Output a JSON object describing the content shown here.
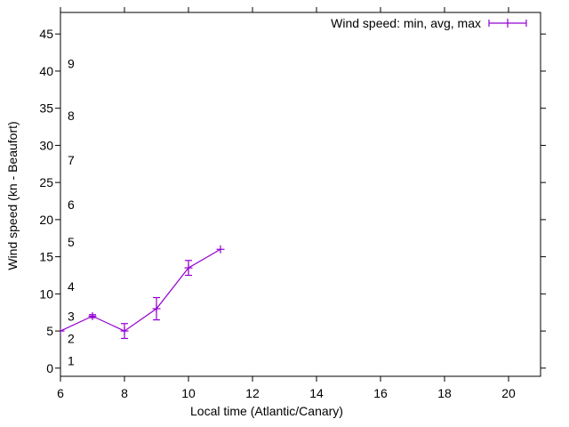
{
  "window": {
    "background_color": "#ffffff"
  },
  "chart_data": {
    "type": "line",
    "subtype": "yerrorlines",
    "legend_label": "Wind speed: min, avg, max",
    "legend_position": "top-right-inside",
    "xlabel": "Local time (Atlantic/Canary)",
    "ylabel": "Wind speed (kn - Beaufort)",
    "x_range": [
      6,
      21
    ],
    "y_range": [
      -1.1,
      47.9
    ],
    "x_ticks": [
      6,
      8,
      10,
      12,
      14,
      16,
      18,
      20
    ],
    "y_ticks": [
      0,
      5,
      10,
      15,
      20,
      25,
      30,
      35,
      40,
      45
    ],
    "grid": false,
    "tick_direction": "out-mirrored",
    "series": [
      {
        "name": "Wind speed: min, avg, max",
        "color": "#9400d3",
        "marker": "plus",
        "points": [
          {
            "x": 6,
            "min": 5,
            "avg": 5,
            "max": 5
          },
          {
            "x": 7,
            "min": 6.8,
            "avg": 7,
            "max": 7.2
          },
          {
            "x": 8,
            "min": 4,
            "avg": 5,
            "max": 6
          },
          {
            "x": 9,
            "min": 6.5,
            "avg": 8,
            "max": 9.5
          },
          {
            "x": 10,
            "min": 12.5,
            "avg": 13.5,
            "max": 14.5
          },
          {
            "x": 11,
            "min": 16,
            "avg": 16,
            "max": 16
          }
        ]
      }
    ],
    "secondary_scale": {
      "name": "Beaufort",
      "labels": [
        {
          "beaufort": "1",
          "kn": 1
        },
        {
          "beaufort": "2",
          "kn": 4
        },
        {
          "beaufort": "3",
          "kn": 7
        },
        {
          "beaufort": "4",
          "kn": 11
        },
        {
          "beaufort": "5",
          "kn": 17
        },
        {
          "beaufort": "6",
          "kn": 22
        },
        {
          "beaufort": "7",
          "kn": 28
        },
        {
          "beaufort": "8",
          "kn": 34
        },
        {
          "beaufort": "9",
          "kn": 41
        }
      ]
    }
  },
  "colors": {
    "background": "#ffffff",
    "axis": "#000000",
    "text": "#000000",
    "series": "#9400d3"
  }
}
